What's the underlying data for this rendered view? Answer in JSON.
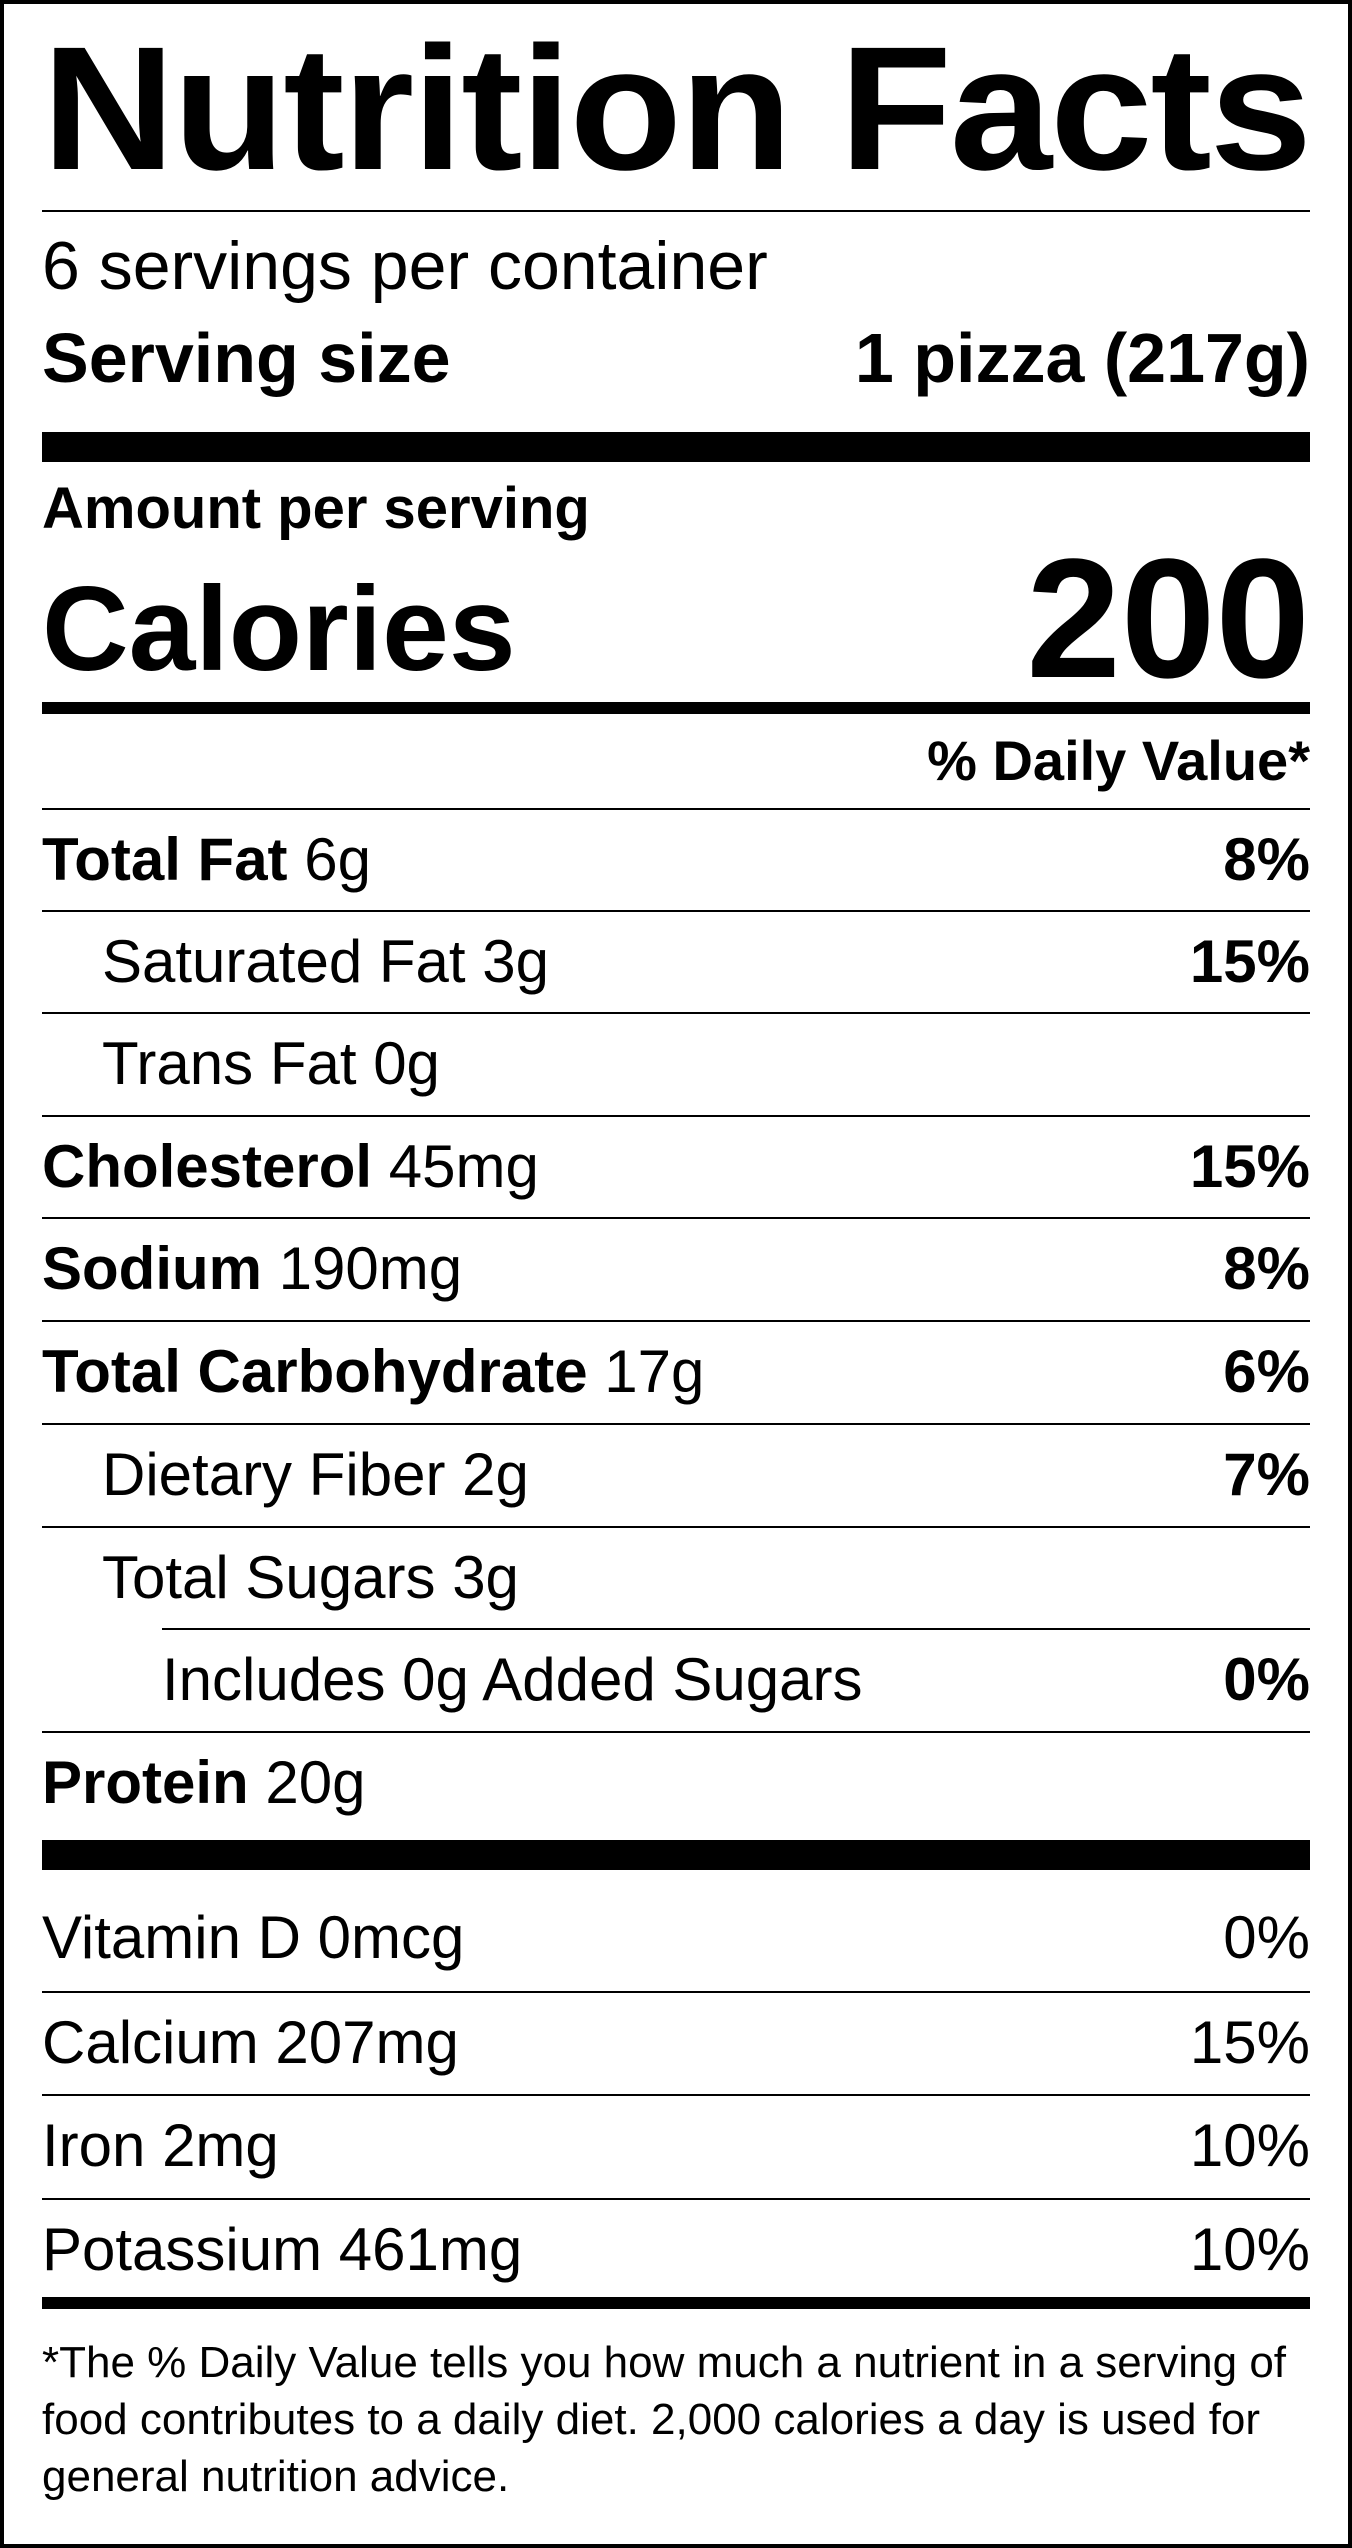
{
  "title": "Nutrition Facts",
  "servings_per_container": "6 servings per container",
  "serving_size": {
    "label": "Serving size",
    "value": "1 pizza (217g)"
  },
  "amount_per_serving": "Amount per serving",
  "calories": {
    "label": "Calories",
    "value": "200"
  },
  "daily_value_header": "% Daily Value*",
  "nutrients": [
    {
      "name": "Total Fat",
      "amount": "6g",
      "dv": "8%"
    },
    {
      "name": "Saturated Fat",
      "amount": "3g",
      "dv": "15%"
    },
    {
      "name": "Trans Fat",
      "amount": "0g",
      "dv": ""
    },
    {
      "name": "Cholesterol",
      "amount": "45mg",
      "dv": "15%"
    },
    {
      "name": "Sodium",
      "amount": "190mg",
      "dv": "8%"
    },
    {
      "name": "Total Carbohydrate",
      "amount": "17g",
      "dv": "6%"
    },
    {
      "name": "Dietary Fiber",
      "amount": "2g",
      "dv": "7%"
    },
    {
      "name": "Total Sugars",
      "amount": "3g",
      "dv": ""
    },
    {
      "name": "Includes 0g Added Sugars",
      "amount": "",
      "dv": "0%"
    },
    {
      "name": "Protein",
      "amount": "20g",
      "dv": ""
    }
  ],
  "vitamins": [
    {
      "name": "Vitamin D",
      "amount": "0mcg",
      "dv": "0%"
    },
    {
      "name": "Calcium",
      "amount": "207mg",
      "dv": "15%"
    },
    {
      "name": "Iron",
      "amount": "2mg",
      "dv": "10%"
    },
    {
      "name": "Potassium",
      "amount": "461mg",
      "dv": "10%"
    }
  ],
  "footnote": "*The % Daily Value tells you how much a nutrient in a serving of food contributes to a daily diet. 2,000 calories a day is used for general nutrition advice."
}
